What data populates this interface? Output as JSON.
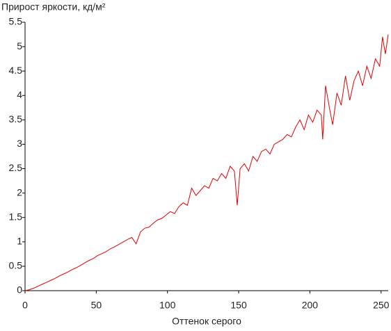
{
  "chart_data": {
    "type": "line",
    "title": "Прирост яркости, кд/м²",
    "x_label": "Оттенок серого",
    "x": [
      0,
      3,
      6,
      9,
      12,
      15,
      18,
      21,
      24,
      27,
      30,
      33,
      36,
      39,
      42,
      45,
      48,
      51,
      54,
      57,
      60,
      63,
      66,
      69,
      72,
      75,
      78,
      81,
      84,
      87,
      90,
      93,
      96,
      99,
      102,
      105,
      108,
      111,
      114,
      117,
      120,
      123,
      126,
      129,
      132,
      135,
      138,
      141,
      144,
      147,
      149,
      151,
      154,
      157,
      160,
      163,
      166,
      169,
      172,
      175,
      178,
      181,
      184,
      187,
      190,
      193,
      196,
      199,
      202,
      205,
      208,
      209,
      211,
      214,
      216,
      219,
      222,
      225,
      228,
      231,
      234,
      237,
      240,
      243,
      246,
      249,
      251,
      253,
      255
    ],
    "series": [
      {
        "name": "Прирост яркости",
        "color": "#e00000",
        "values": [
          0,
          0.02,
          0.05,
          0.09,
          0.13,
          0.17,
          0.21,
          0.25,
          0.3,
          0.34,
          0.38,
          0.43,
          0.47,
          0.52,
          0.57,
          0.62,
          0.66,
          0.72,
          0.76,
          0.8,
          0.86,
          0.9,
          0.95,
          1.0,
          1.05,
          1.09,
          0.96,
          1.2,
          1.28,
          1.3,
          1.38,
          1.45,
          1.48,
          1.55,
          1.62,
          1.58,
          1.72,
          1.8,
          1.75,
          2.1,
          1.95,
          2.05,
          2.15,
          2.1,
          2.3,
          2.25,
          2.4,
          2.3,
          2.55,
          2.45,
          1.75,
          2.5,
          2.6,
          2.45,
          2.75,
          2.65,
          2.85,
          2.9,
          2.8,
          3.0,
          3.05,
          3.1,
          3.2,
          3.15,
          3.35,
          3.5,
          3.3,
          3.6,
          3.45,
          3.7,
          3.6,
          3.1,
          4.2,
          3.7,
          3.4,
          4.05,
          3.8,
          4.4,
          3.9,
          4.3,
          4.5,
          4.2,
          4.6,
          4.35,
          4.75,
          4.6,
          5.2,
          4.85,
          5.25
        ]
      }
    ],
    "xlim": [
      0,
      255
    ],
    "xticks": [
      0,
      50,
      100,
      150,
      200,
      250
    ],
    "ylim": [
      0,
      5.5
    ],
    "yticks": [
      0,
      0.5,
      1,
      1.5,
      2,
      2.5,
      3,
      3.5,
      4,
      4.5,
      5,
      5.5
    ]
  }
}
